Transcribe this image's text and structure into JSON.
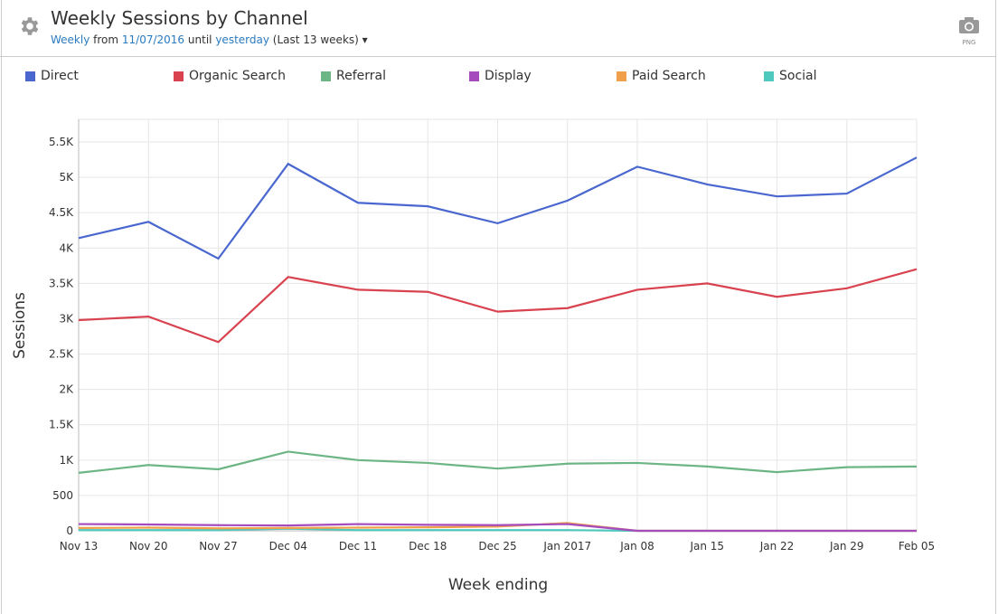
{
  "header": {
    "title": "Weekly Sessions by Channel",
    "period": "Weekly",
    "from_word": "from",
    "from_date": "11/07/2016",
    "until_word": "until",
    "until_value": "yesterday",
    "range_note": "(Last 13 weeks)",
    "export_label": "PNG"
  },
  "chart_data": {
    "type": "line",
    "xlabel": "Week ending",
    "ylabel": "Sessions",
    "categories": [
      "Nov 13",
      "Nov 20",
      "Nov 27",
      "Dec 04",
      "Dec 11",
      "Dec 18",
      "Dec 25",
      "Jan 2017",
      "Jan 08",
      "Jan 15",
      "Jan 22",
      "Jan 29",
      "Feb 05"
    ],
    "ylim": [
      0,
      5800
    ],
    "yticks": [
      0,
      500,
      1000,
      1500,
      2000,
      2500,
      3000,
      3500,
      4000,
      4500,
      5000,
      5500
    ],
    "ytick_labels": [
      "0",
      "500",
      "1K",
      "1.5K",
      "2K",
      "2.5K",
      "3K",
      "3.5K",
      "4K",
      "4.5K",
      "5K",
      "5.5K"
    ],
    "legend_position": "top",
    "grid": true,
    "series": [
      {
        "name": "Direct",
        "color": "#4a67d0",
        "values": [
          4140,
          4370,
          3850,
          5190,
          4640,
          4590,
          4350,
          4670,
          5150,
          4900,
          4730,
          4770,
          5280
        ]
      },
      {
        "name": "Organic Search",
        "color": "#d9434f",
        "values": [
          2980,
          3030,
          2670,
          3590,
          3410,
          3380,
          3100,
          3150,
          3410,
          3500,
          3310,
          3430,
          3700
        ]
      },
      {
        "name": "Referral",
        "color": "#6cb584",
        "values": [
          820,
          930,
          870,
          1120,
          1000,
          960,
          880,
          950,
          960,
          910,
          830,
          900,
          910
        ]
      },
      {
        "name": "Display",
        "color": "#a64bbd",
        "values": [
          95,
          90,
          80,
          75,
          95,
          85,
          80,
          95,
          0,
          0,
          0,
          0,
          0
        ]
      },
      {
        "name": "Paid Search",
        "color": "#f0a04b",
        "values": [
          40,
          45,
          35,
          40,
          45,
          50,
          60,
          110,
          0,
          0,
          0,
          0,
          0
        ]
      },
      {
        "name": "Social",
        "color": "#4fc8bd",
        "values": [
          10,
          10,
          10,
          30,
          10,
          10,
          10,
          10,
          0,
          0,
          0,
          0,
          0
        ]
      }
    ]
  }
}
